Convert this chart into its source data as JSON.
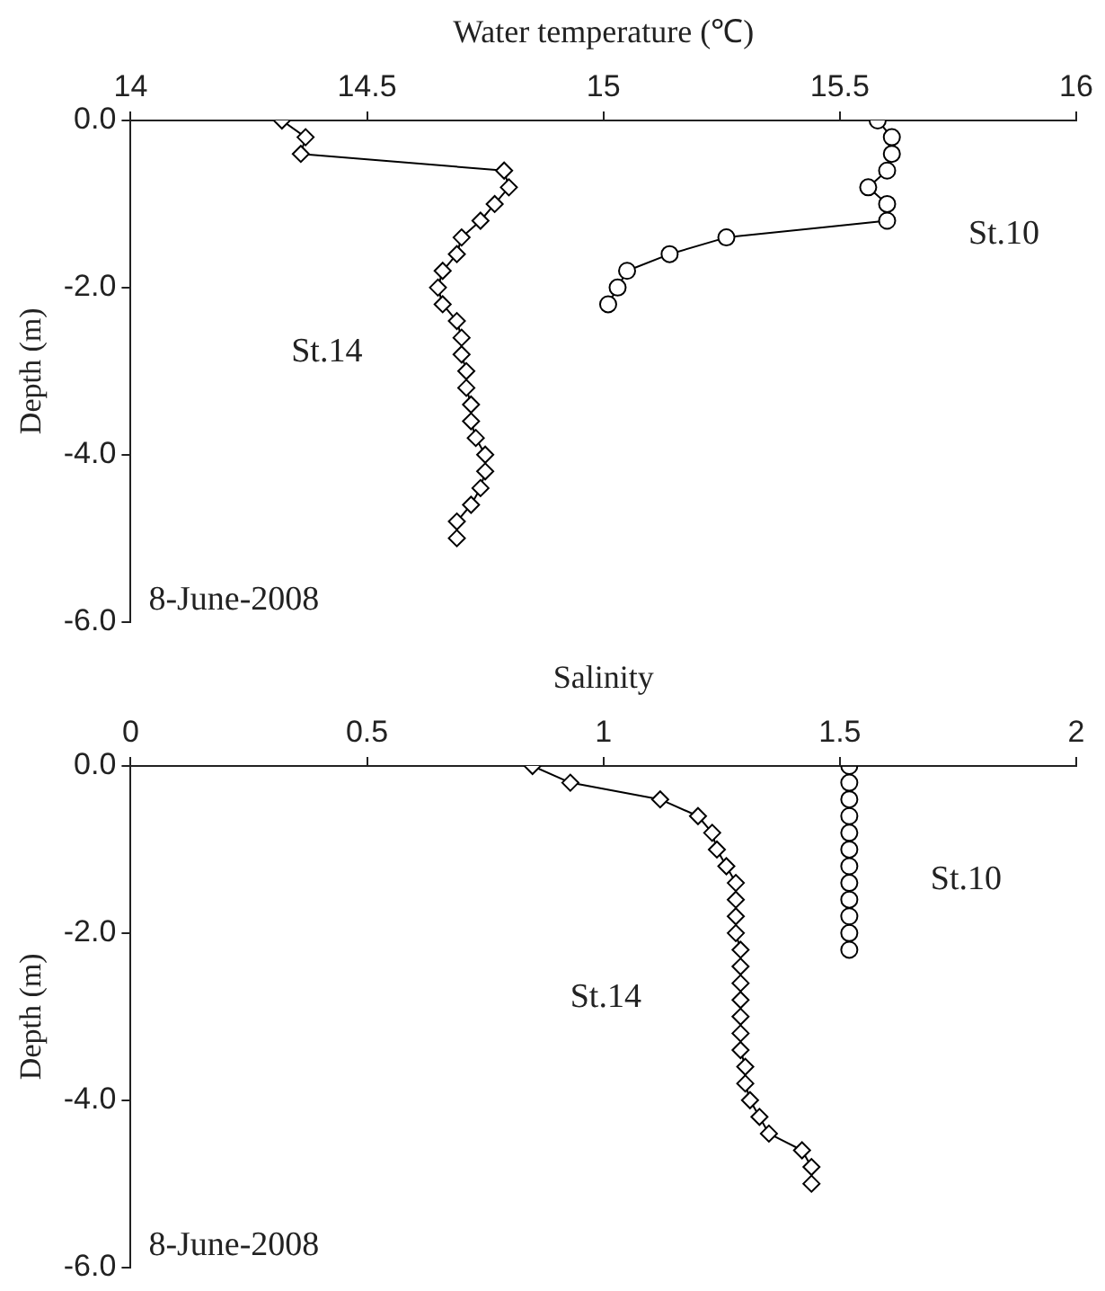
{
  "chart_data": [
    {
      "type": "line",
      "xlabel": "Water temperature (℃)",
      "ylabel": "Depth (m)",
      "xlim": [
        14,
        16
      ],
      "xticks": [
        14,
        14.5,
        15,
        15.5,
        16
      ],
      "ylim": [
        -6,
        0
      ],
      "yticks": [
        {
          "value": 0,
          "label": "0.0"
        },
        {
          "value": -2,
          "label": "-2.0"
        },
        {
          "value": -4,
          "label": "-4.0"
        },
        {
          "value": -6,
          "label": "-6.0"
        }
      ],
      "grid": false,
      "legend": false,
      "line_style": "solid",
      "series": [
        {
          "name": "St.14",
          "color": "#000000",
          "marker": "diamond",
          "x": [
            14.32,
            14.37,
            14.36,
            14.79,
            14.8,
            14.77,
            14.74,
            14.7,
            14.69,
            14.66,
            14.65,
            14.66,
            14.69,
            14.7,
            14.7,
            14.71,
            14.71,
            14.72,
            14.72,
            14.73,
            14.75,
            14.75,
            14.74,
            14.72,
            14.69,
            14.69
          ],
          "values": [
            0,
            -0.2,
            -0.4,
            -0.6,
            -0.8,
            -1.0,
            -1.2,
            -1.4,
            -1.6,
            -1.8,
            -2.0,
            -2.2,
            -2.4,
            -2.6,
            -2.8,
            -3.0,
            -3.2,
            -3.4,
            -3.6,
            -3.8,
            -4.0,
            -4.2,
            -4.4,
            -4.6,
            -4.8,
            -5.0
          ]
        },
        {
          "name": "St.10",
          "color": "#000000",
          "marker": "circle",
          "x": [
            15.58,
            15.61,
            15.61,
            15.6,
            15.56,
            15.6,
            15.6,
            15.26,
            15.14,
            15.05,
            15.03,
            15.01
          ],
          "values": [
            0,
            -0.2,
            -0.4,
            -0.6,
            -0.8,
            -1.0,
            -1.2,
            -1.4,
            -1.6,
            -1.8,
            -2.0,
            -2.2
          ]
        }
      ],
      "annotations": [
        "8-June-2008"
      ]
    },
    {
      "type": "line",
      "xlabel": "Salinity",
      "ylabel": "Depth (m)",
      "xlim": [
        0,
        2
      ],
      "xticks": [
        0,
        0.5,
        1,
        1.5,
        2
      ],
      "ylim": [
        -6,
        0
      ],
      "yticks": [
        {
          "value": 0,
          "label": "0.0"
        },
        {
          "value": -2,
          "label": "-2.0"
        },
        {
          "value": -4,
          "label": "-4.0"
        },
        {
          "value": -6,
          "label": "-6.0"
        }
      ],
      "grid": false,
      "legend": false,
      "line_style": "solid",
      "series": [
        {
          "name": "St.14",
          "color": "#000000",
          "marker": "diamond",
          "x": [
            0.85,
            0.93,
            1.12,
            1.2,
            1.23,
            1.24,
            1.26,
            1.28,
            1.28,
            1.28,
            1.28,
            1.29,
            1.29,
            1.29,
            1.29,
            1.29,
            1.29,
            1.29,
            1.3,
            1.3,
            1.31,
            1.33,
            1.35,
            1.42,
            1.44,
            1.44
          ],
          "values": [
            0,
            -0.2,
            -0.4,
            -0.6,
            -0.8,
            -1.0,
            -1.2,
            -1.4,
            -1.6,
            -1.8,
            -2.0,
            -2.2,
            -2.4,
            -2.6,
            -2.8,
            -3.0,
            -3.2,
            -3.4,
            -3.6,
            -3.8,
            -4.0,
            -4.2,
            -4.4,
            -4.6,
            -4.8,
            -5.0
          ]
        },
        {
          "name": "St.10",
          "type": "scatter",
          "color": "#000000",
          "marker": "circle",
          "x": [
            1.52,
            1.52,
            1.52,
            1.52,
            1.52,
            1.52,
            1.52,
            1.52,
            1.52,
            1.52,
            1.52,
            1.52
          ],
          "values": [
            0,
            -0.2,
            -0.4,
            -0.6,
            -0.8,
            -1.0,
            -1.2,
            -1.4,
            -1.6,
            -1.8,
            -2.0,
            -2.2
          ]
        }
      ],
      "annotations": [
        "8-June-2008"
      ]
    }
  ]
}
